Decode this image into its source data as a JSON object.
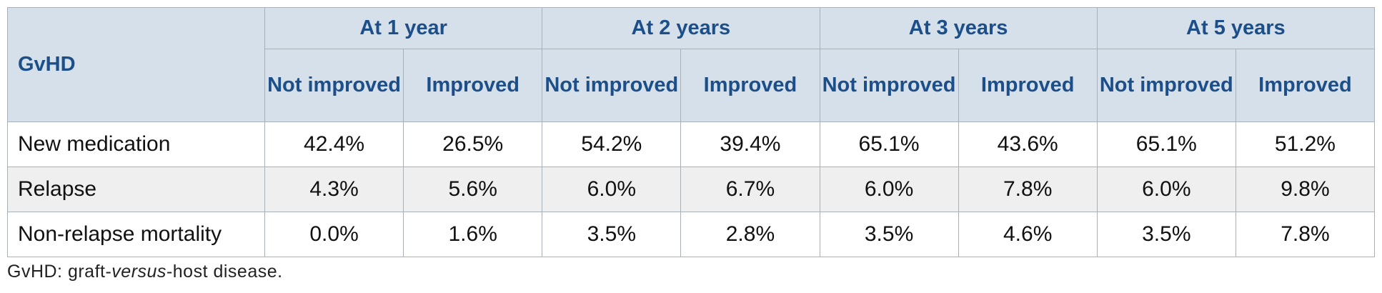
{
  "table": {
    "corner": "GvHD",
    "groups": [
      "At 1 year",
      "At 2 years",
      "At 3 years",
      "At 5 years"
    ],
    "subheaders": [
      "Not improved",
      "Improved",
      "Not improved",
      "Improved",
      "Not improved",
      "Improved",
      "Not improved",
      "Improved"
    ],
    "rows": [
      [
        "New medication",
        "42.4%",
        "26.5%",
        "54.2%",
        "39.4%",
        "65.1%",
        "43.6%",
        "65.1%",
        "51.2%"
      ],
      [
        "Relapse",
        "4.3%",
        "5.6%",
        "6.0%",
        "6.7%",
        "6.0%",
        "7.8%",
        "6.0%",
        "9.8%"
      ],
      [
        "Non-relapse mortality",
        "0.0%",
        "1.6%",
        "3.5%",
        "2.8%",
        "3.5%",
        "4.6%",
        "3.5%",
        "7.8%"
      ]
    ]
  },
  "footnote": {
    "before": "GvHD: graft-",
    "italic": "versus",
    "after": "-host disease."
  }
}
